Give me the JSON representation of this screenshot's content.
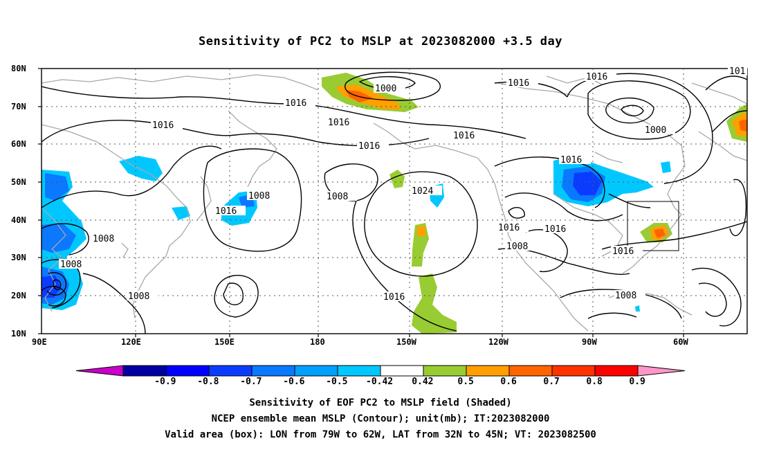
{
  "title": "Sensitivity of PC2 to MSLP at 2023082000 +3.5 day",
  "lat_labels": [
    "80N",
    "70N",
    "60N",
    "50N",
    "40N",
    "30N",
    "20N",
    "10N"
  ],
  "lon_labels": [
    "90E",
    "120E",
    "150E",
    "180",
    "150W",
    "120W",
    "90W",
    "60W"
  ],
  "contour_labels": [
    "1000",
    "1000",
    "1008",
    "1008",
    "1008",
    "1008",
    "1008",
    "1008",
    "1016",
    "1016",
    "1016",
    "1016",
    "1016",
    "1016",
    "1016",
    "1016",
    "1016",
    "1016",
    "1016",
    "1016",
    "1024",
    "101"
  ],
  "colorbar": {
    "labels": [
      "-0.9",
      "-0.8",
      "-0.7",
      "-0.6",
      "-0.5",
      "-0.42",
      "0.42",
      "0.5",
      "0.6",
      "0.7",
      "0.8",
      "0.9"
    ],
    "colors": [
      "#c800c8",
      "#0000a0",
      "#0000ff",
      "#0a3cff",
      "#0a78ff",
      "#00a0ff",
      "#00c8ff",
      "#ffffff",
      "#99cc33",
      "#ffa000",
      "#ff6400",
      "#ff3200",
      "#ff0000",
      "#ff96c8"
    ]
  },
  "footer": {
    "line1": "Sensitivity of EOF PC2 to MSLP field (Shaded)",
    "line2": "NCEP ensemble mean MSLP (Contour); unit(mb); IT:2023082000",
    "line3": "Valid area (box): LON from 79W to 62W, LAT from 32N to 45N; VT: 2023082500"
  }
}
